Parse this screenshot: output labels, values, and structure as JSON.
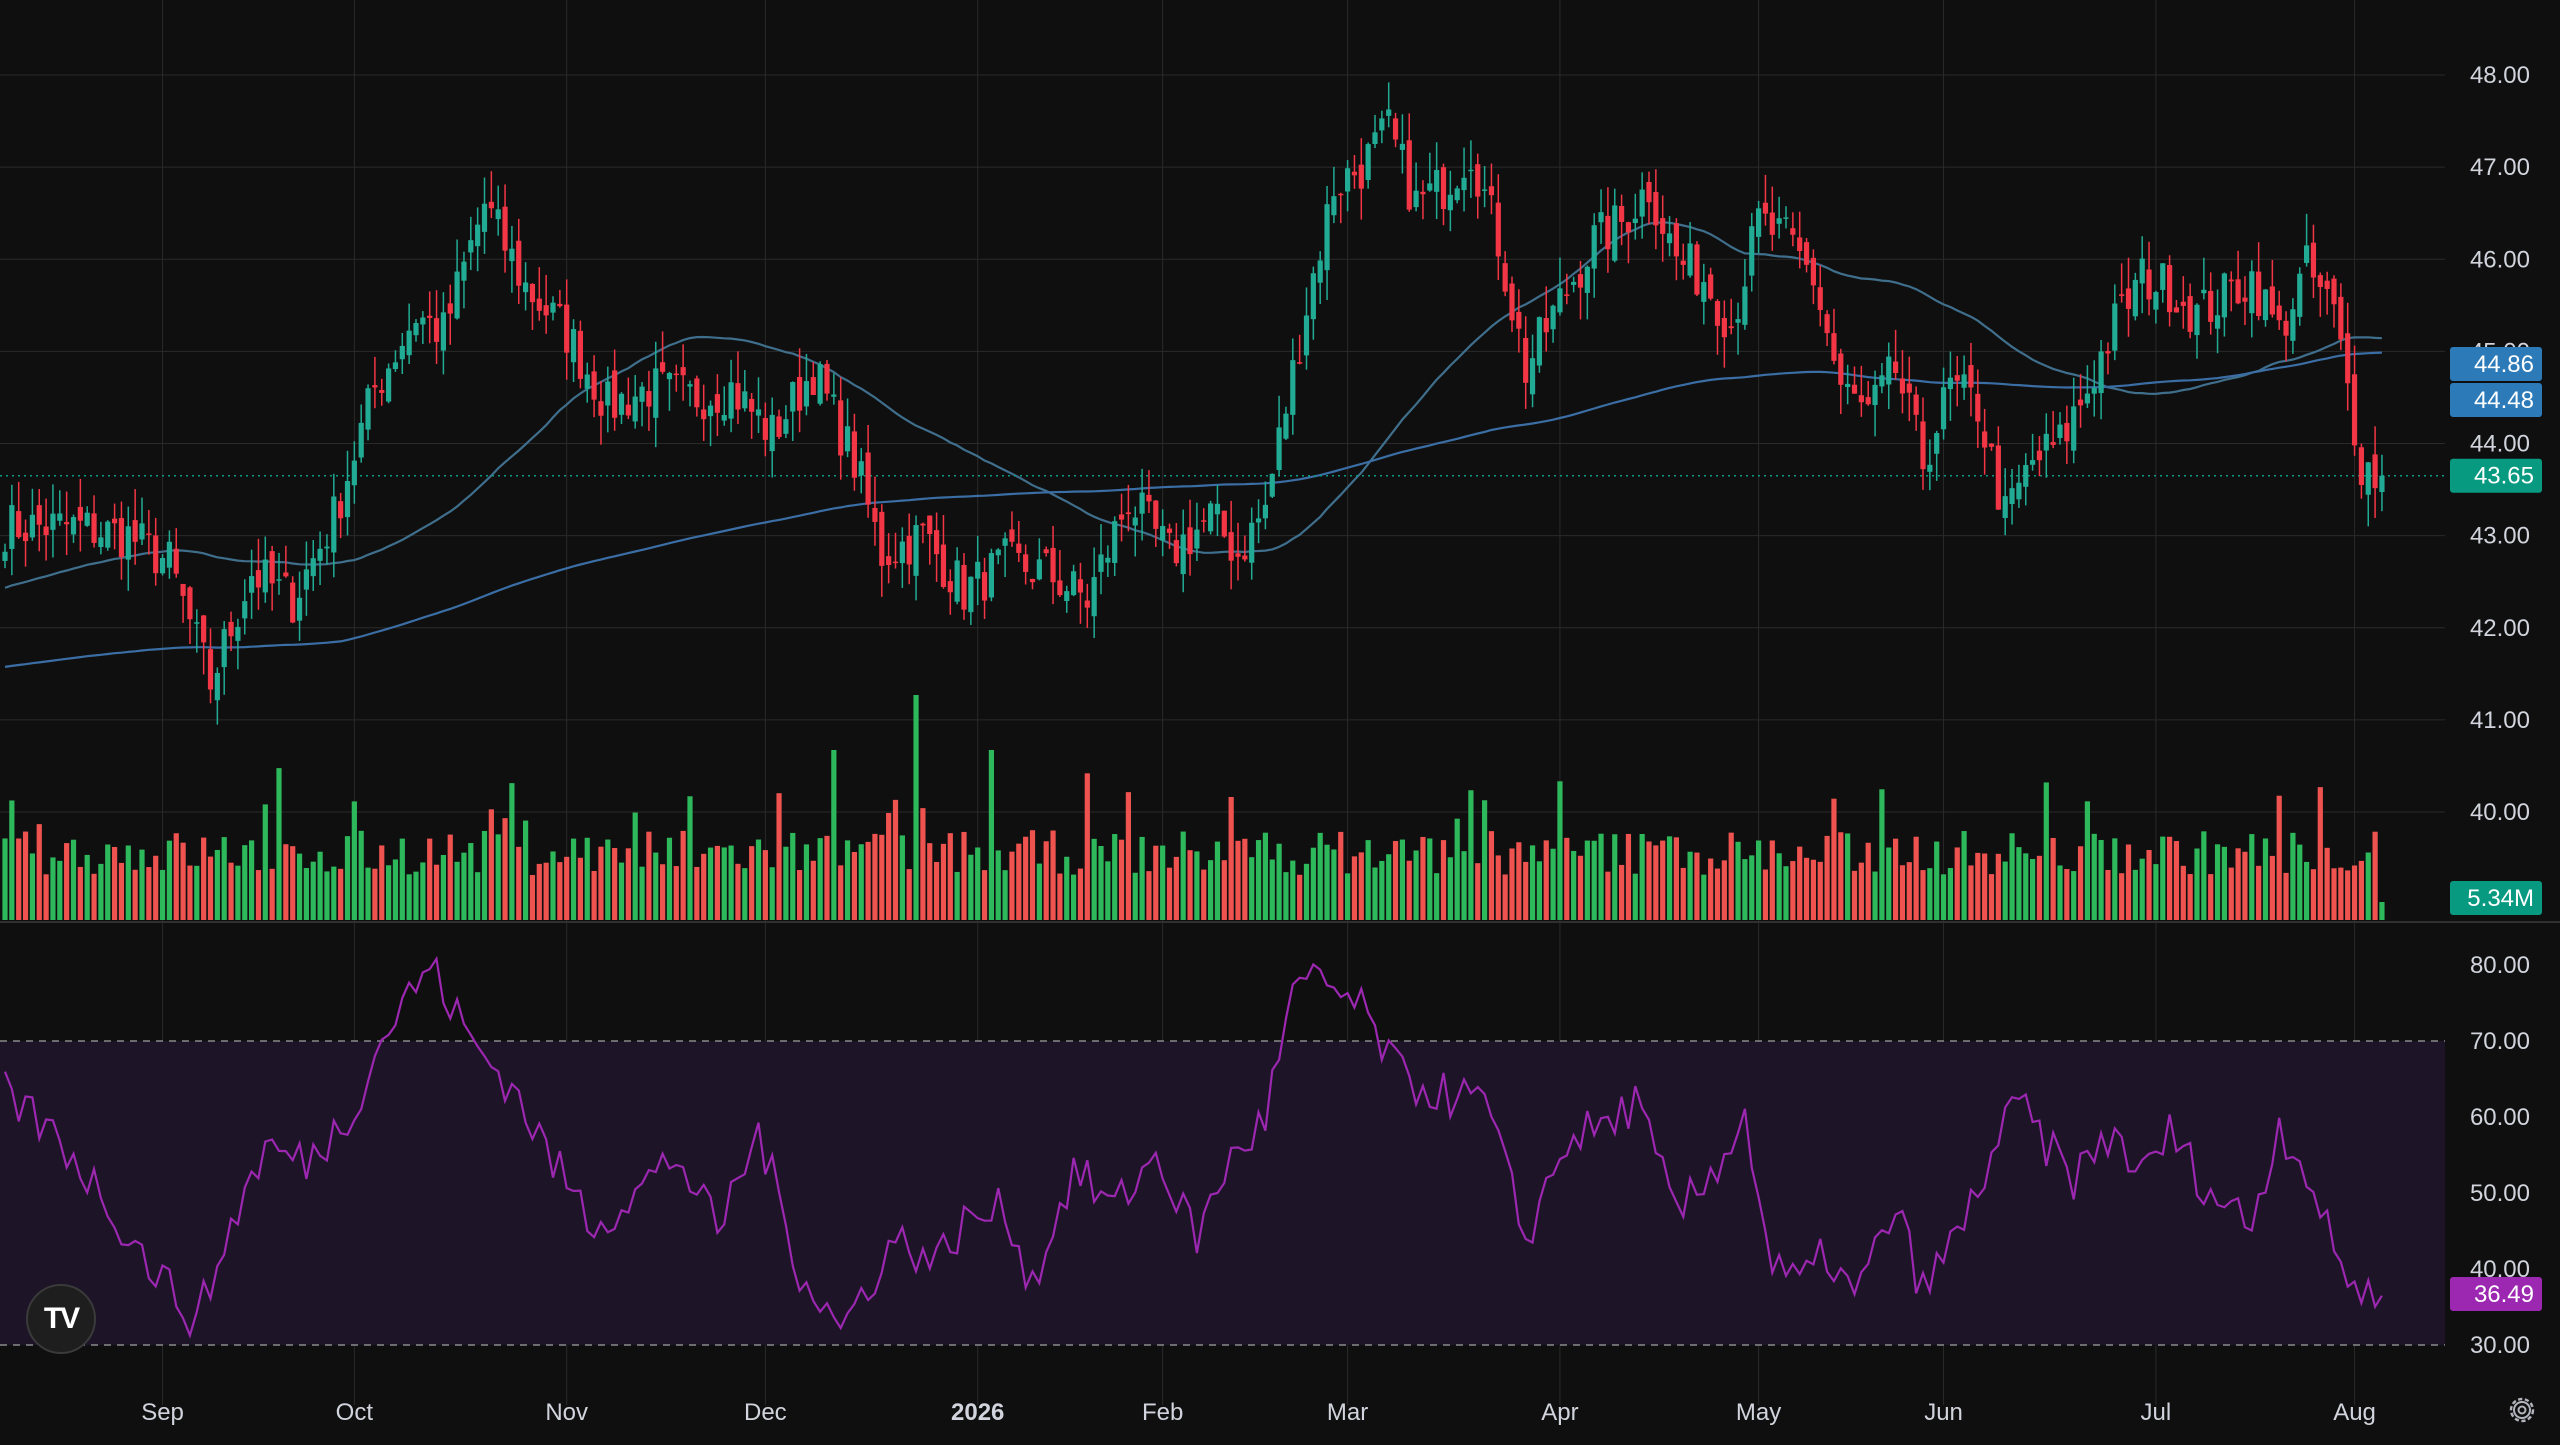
{
  "colors": {
    "background": "#0f0f0f",
    "up": "#22ab94",
    "down": "#f23645",
    "volume_up": "#2eb85c",
    "volume_down": "#ef5350",
    "ma_fast": "#3f6f8c",
    "ma_slow": "#3b6ea5",
    "rsi_line": "#9c27b0",
    "rsi_band": "#1e1428",
    "grid": "#2a2a2a",
    "text": "#d1d4dc",
    "last_price_badge": "#089981",
    "ma_fast_badge": "#2c7ab8",
    "ma_slow_badge": "#2c7ab8",
    "volume_badge": "#089981",
    "rsi_badge": "#9c27b0"
  },
  "branding": {
    "logo_icon": "tradingview-logo-icon",
    "logo_text": "TV"
  },
  "settings_icon": "gear-icon",
  "chart_data": [
    {
      "type": "candlestick",
      "name": "price",
      "x_labels": [
        "Sep",
        "Oct",
        "Nov",
        "Dec",
        "2026",
        "Feb",
        "Mar",
        "Apr",
        "May",
        "Jun",
        "Jul",
        "Aug"
      ],
      "y_ticks": [
        "48.00",
        "47.00",
        "46.00",
        "45.00",
        "44.00",
        "43.00",
        "42.00",
        "41.00",
        "40.00"
      ],
      "ylim": [
        39.2,
        48.4
      ],
      "grid": true,
      "badges": {
        "ma_fast": "44.86",
        "ma_slow": "44.48",
        "last": "43.65"
      },
      "price_anchors": [
        [
          0,
          43.1
        ],
        [
          10,
          43.1
        ],
        [
          18,
          43.0
        ],
        [
          24,
          42.7
        ],
        [
          30,
          41.4
        ],
        [
          36,
          42.6
        ],
        [
          42,
          42.3
        ],
        [
          48,
          43.2
        ],
        [
          54,
          44.6
        ],
        [
          60,
          45.4
        ],
        [
          64,
          45.2
        ],
        [
          70,
          46.6
        ],
        [
          76,
          45.7
        ],
        [
          82,
          45.2
        ],
        [
          88,
          44.4
        ],
        [
          94,
          44.6
        ],
        [
          100,
          44.5
        ],
        [
          106,
          44.6
        ],
        [
          112,
          44.1
        ],
        [
          118,
          44.8
        ],
        [
          124,
          43.8
        ],
        [
          128,
          42.8
        ],
        [
          134,
          43.0
        ],
        [
          140,
          42.4
        ],
        [
          146,
          42.7
        ],
        [
          152,
          42.6
        ],
        [
          158,
          42.3
        ],
        [
          164,
          43.4
        ],
        [
          170,
          42.8
        ],
        [
          176,
          43.2
        ],
        [
          180,
          42.8
        ],
        [
          184,
          43.3
        ],
        [
          190,
          45.5
        ],
        [
          194,
          46.8
        ],
        [
          198,
          47.0
        ],
        [
          202,
          47.4
        ],
        [
          206,
          46.6
        ],
        [
          210,
          46.8
        ],
        [
          214,
          47.2
        ],
        [
          218,
          46.2
        ],
        [
          222,
          44.8
        ],
        [
          226,
          45.4
        ],
        [
          232,
          46.2
        ],
        [
          236,
          46.4
        ],
        [
          240,
          46.8
        ],
        [
          244,
          46.0
        ],
        [
          248,
          45.8
        ],
        [
          252,
          45.3
        ],
        [
          256,
          46.4
        ],
        [
          260,
          46.2
        ],
        [
          264,
          45.8
        ],
        [
          268,
          44.6
        ],
        [
          272,
          44.3
        ],
        [
          276,
          44.8
        ],
        [
          280,
          43.8
        ],
        [
          284,
          44.6
        ],
        [
          288,
          44.4
        ],
        [
          292,
          43.2
        ],
        [
          296,
          43.8
        ],
        [
          300,
          44.0
        ],
        [
          304,
          44.6
        ],
        [
          308,
          45.3
        ],
        [
          312,
          45.8
        ],
        [
          316,
          45.7
        ],
        [
          320,
          45.4
        ],
        [
          324,
          45.6
        ],
        [
          328,
          45.8
        ],
        [
          332,
          45.2
        ],
        [
          336,
          45.9
        ],
        [
          340,
          45.4
        ],
        [
          344,
          43.8
        ],
        [
          347,
          43.6
        ]
      ]
    },
    {
      "type": "bar",
      "name": "volume",
      "badge": "5.34M"
    },
    {
      "type": "line",
      "name": "rsi",
      "y_ticks": [
        "80.00",
        "70.00",
        "60.00",
        "50.00",
        "40.00",
        "30.00"
      ],
      "ylim": [
        27.0,
        82.0
      ],
      "band": [
        30,
        70
      ],
      "badge": "36.49",
      "rsi_anchors": [
        [
          0,
          63
        ],
        [
          8,
          57
        ],
        [
          14,
          50
        ],
        [
          20,
          42
        ],
        [
          28,
          33
        ],
        [
          34,
          48
        ],
        [
          38,
          56
        ],
        [
          44,
          54
        ],
        [
          50,
          60
        ],
        [
          56,
          72
        ],
        [
          62,
          80
        ],
        [
          68,
          70
        ],
        [
          74,
          64
        ],
        [
          80,
          54
        ],
        [
          86,
          46
        ],
        [
          92,
          50
        ],
        [
          98,
          55
        ],
        [
          104,
          45
        ],
        [
          110,
          58
        ],
        [
          116,
          40
        ],
        [
          122,
          32
        ],
        [
          130,
          44
        ],
        [
          136,
          41
        ],
        [
          140,
          46
        ],
        [
          146,
          48
        ],
        [
          150,
          38
        ],
        [
          156,
          53
        ],
        [
          162,
          48
        ],
        [
          168,
          55
        ],
        [
          174,
          44
        ],
        [
          178,
          53
        ],
        [
          184,
          60
        ],
        [
          188,
          76
        ],
        [
          192,
          78
        ],
        [
          198,
          74
        ],
        [
          204,
          65
        ],
        [
          210,
          63
        ],
        [
          216,
          62
        ],
        [
          222,
          44
        ],
        [
          228,
          57
        ],
        [
          234,
          59
        ],
        [
          238,
          62
        ],
        [
          244,
          47
        ],
        [
          248,
          51
        ],
        [
          254,
          60
        ],
        [
          258,
          40
        ],
        [
          262,
          38
        ],
        [
          266,
          42
        ],
        [
          270,
          36
        ],
        [
          276,
          48
        ],
        [
          280,
          37
        ],
        [
          286,
          46
        ],
        [
          290,
          55
        ],
        [
          294,
          62
        ],
        [
          298,
          56
        ],
        [
          302,
          52
        ],
        [
          308,
          58
        ],
        [
          312,
          52
        ],
        [
          316,
          58
        ],
        [
          322,
          50
        ],
        [
          328,
          46
        ],
        [
          332,
          59
        ],
        [
          336,
          53
        ],
        [
          340,
          42
        ],
        [
          344,
          37
        ],
        [
          347,
          36.49
        ]
      ]
    }
  ]
}
